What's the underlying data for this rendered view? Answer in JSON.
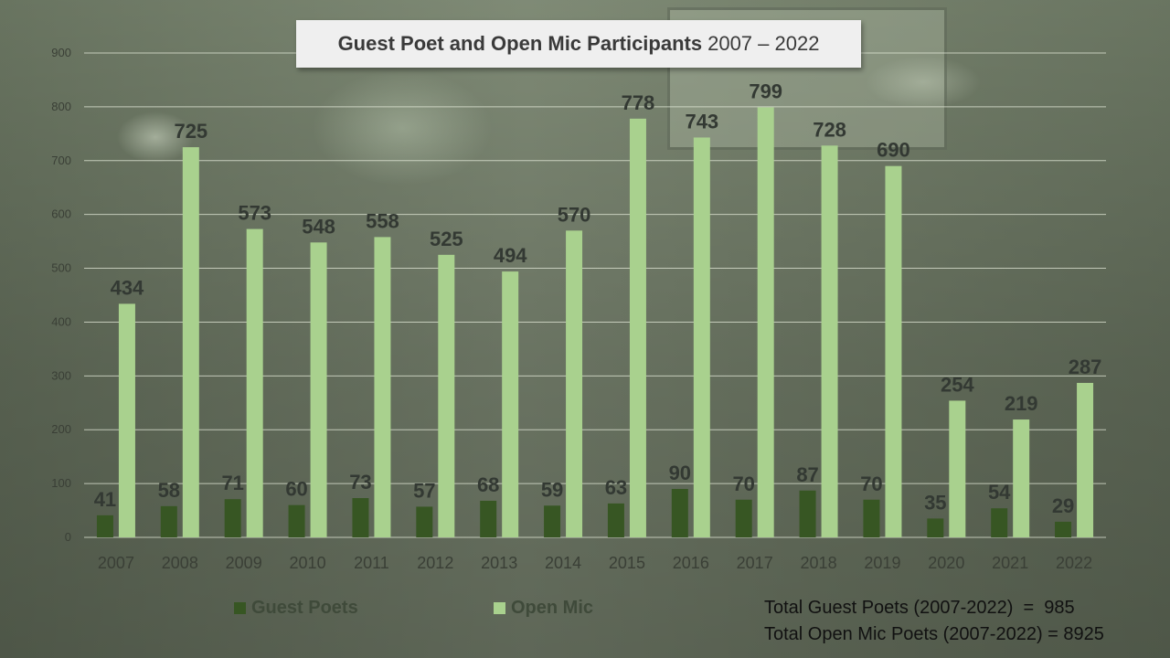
{
  "title": {
    "bold": "Guest Poet and Open Mic Participants",
    "regular": "2007 – 2022"
  },
  "colors": {
    "guest": "#375623",
    "open_mic": "#a9d18e",
    "gridline": "#e4ead9"
  },
  "chart_data": {
    "type": "bar",
    "title": "Guest Poet and Open Mic Participants 2007 – 2022",
    "xlabel": "",
    "ylabel": "",
    "ylim": [
      0,
      900
    ],
    "yticks": [
      0,
      100,
      200,
      300,
      400,
      500,
      600,
      700,
      800,
      900
    ],
    "grid": true,
    "legend_position": "bottom",
    "categories": [
      "2007",
      "2008",
      "2009",
      "2010",
      "2011",
      "2012",
      "2013",
      "2014",
      "2015",
      "2016",
      "2017",
      "2018",
      "2019",
      "2020",
      "2021",
      "2022"
    ],
    "series": [
      {
        "name": "Guest Poets",
        "values": [
          41,
          58,
          71,
          60,
          73,
          57,
          68,
          59,
          63,
          90,
          70,
          87,
          70,
          35,
          54,
          29
        ]
      },
      {
        "name": "Open Mic",
        "values": [
          434,
          725,
          573,
          548,
          558,
          525,
          494,
          570,
          778,
          743,
          799,
          728,
          690,
          254,
          219,
          287
        ]
      }
    ]
  },
  "legend": {
    "guest": "Guest Poets",
    "open_mic": "Open Mic"
  },
  "totals": {
    "guest": "Total Guest Poets (2007-2022)  =  985",
    "open_mic": "Total Open Mic Poets (2007-2022) = 8925"
  }
}
